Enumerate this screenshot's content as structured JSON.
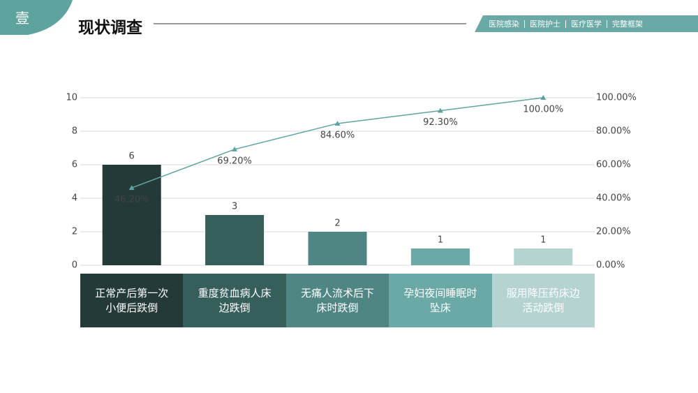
{
  "header": {
    "badge": "壹",
    "title": "现状调查",
    "tags": [
      "医院感染",
      "医院护士",
      "医疗医学",
      "完整框架"
    ]
  },
  "chart_data": {
    "type": "bar",
    "categories": [
      "正常产后第一次小便后跌倒",
      "重度贫血病人床边跌倒",
      "无痛人流术后下床时跌倒",
      "孕妇夜间睡眠时坠床",
      "服用降压药床边活动跌倒"
    ],
    "values": [
      6,
      3,
      2,
      1,
      1
    ],
    "colors": [
      "#233a38",
      "#365f5c",
      "#4f8683",
      "#6aa9a5",
      "#b4d3d1"
    ],
    "line": {
      "axis": "y2",
      "color": "#5fa39f",
      "values": [
        46.2,
        69.2,
        84.6,
        92.3,
        100
      ],
      "value_labels": [
        "46.20%",
        "69.20%",
        "84.60%",
        "92.30%",
        "100.00%"
      ]
    },
    "ylim": [
      0,
      10
    ],
    "yticks": [
      0,
      2,
      4,
      6,
      8,
      10
    ],
    "y2lim": [
      0,
      100
    ],
    "y2ticks": [
      {
        "value": 0,
        "label": "0.00%"
      },
      {
        "value": 20,
        "label": "20.00%"
      },
      {
        "value": 40,
        "label": "40.00%"
      },
      {
        "value": 60,
        "label": "60.00%"
      },
      {
        "value": 80,
        "label": "80.00%"
      },
      {
        "value": 100,
        "label": "100.00%"
      }
    ],
    "grid": true
  }
}
